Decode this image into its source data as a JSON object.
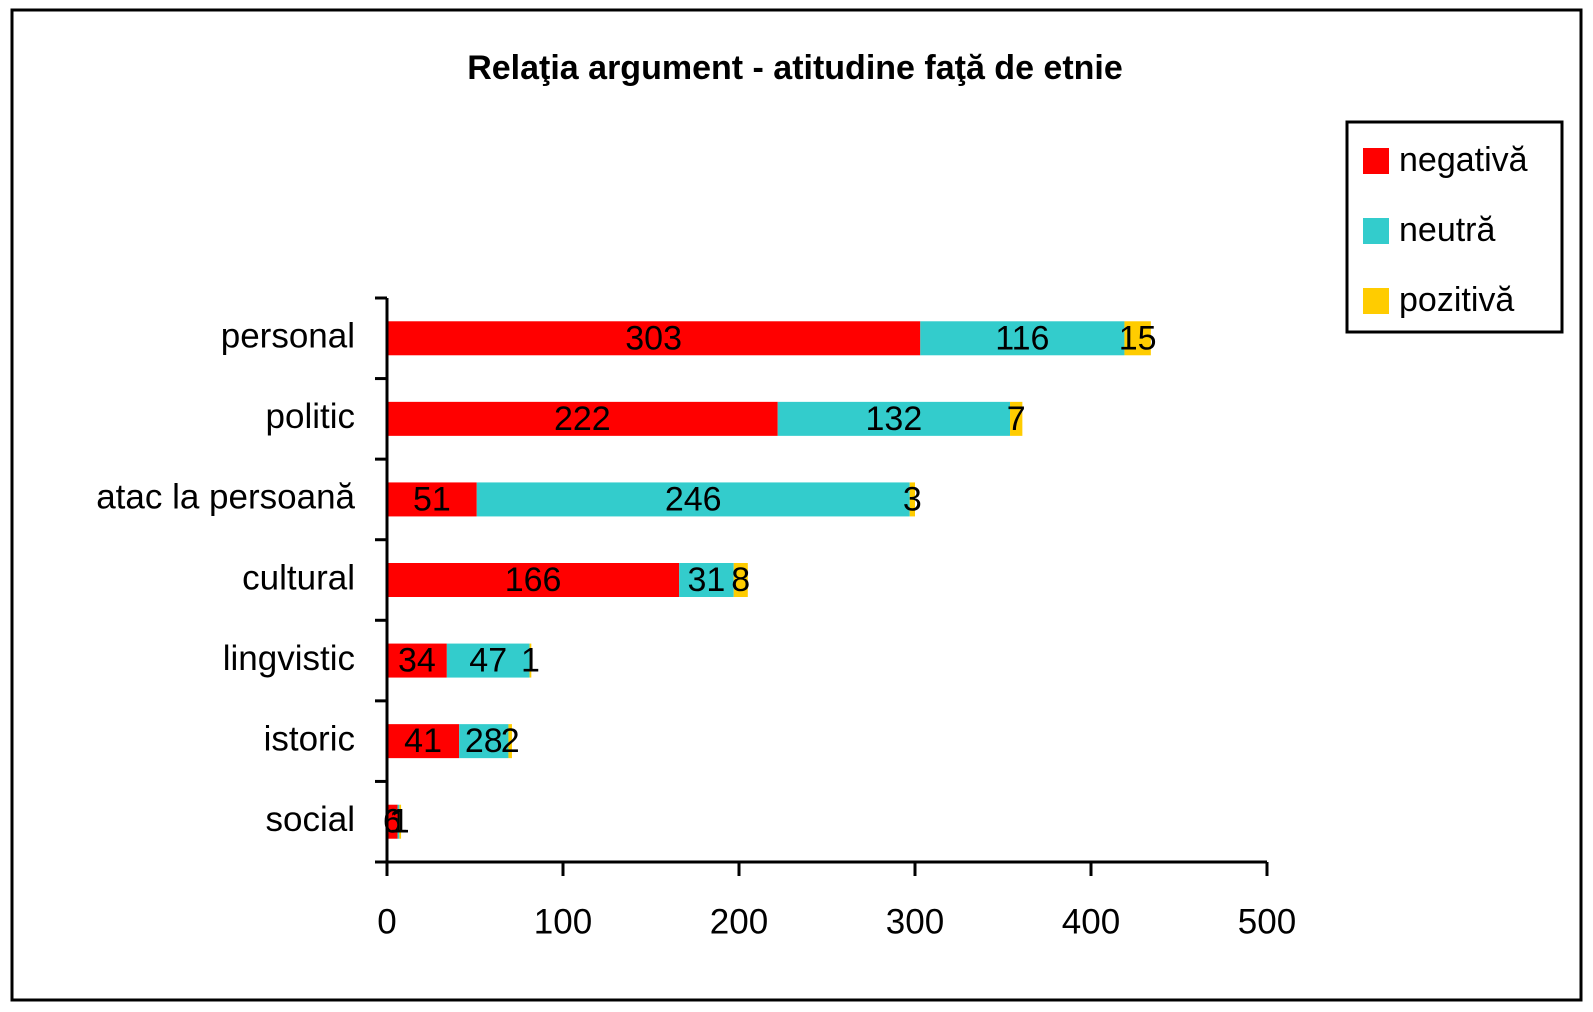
{
  "chart_data": {
    "type": "stacked_bar_horizontal",
    "title": "Relaţia argument - atitudine faţă de etnie",
    "categories": [
      "personal",
      "politic",
      "atac la persoană",
      "cultural",
      "lingvistic",
      "istoric",
      "social"
    ],
    "series": [
      {
        "name": "negativă",
        "color": "#ff0000",
        "values": [
          303,
          222,
          51,
          166,
          34,
          41,
          6
        ]
      },
      {
        "name": "neutră",
        "color": "#33cccc",
        "values": [
          116,
          132,
          246,
          31,
          47,
          28,
          1
        ]
      },
      {
        "name": "pozitivă",
        "color": "#ffcc00",
        "values": [
          15,
          7,
          3,
          8,
          1,
          2,
          1
        ]
      }
    ],
    "xlim": [
      0,
      500
    ],
    "xticks": [
      0,
      100,
      200,
      300,
      400,
      500
    ],
    "legend": "right",
    "grid": false
  }
}
